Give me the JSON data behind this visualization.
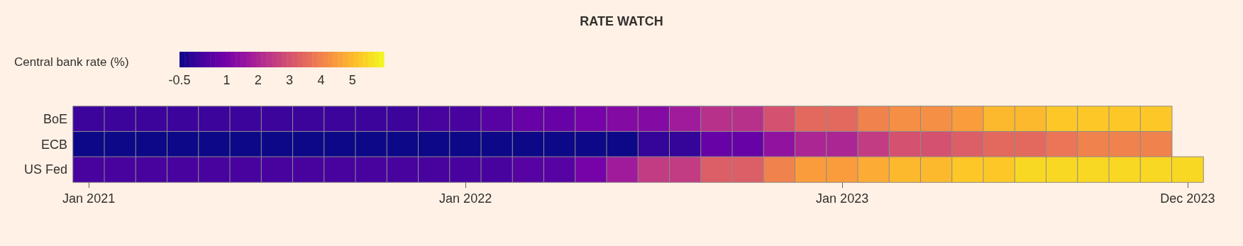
{
  "chart_data": {
    "type": "heatmap",
    "title": "RATE WATCH",
    "clabel": "Central bank rate (%)",
    "categories": [
      "Jan 2021",
      null,
      null,
      null,
      null,
      null,
      null,
      null,
      null,
      null,
      null,
      null,
      "Jan 2022",
      null,
      null,
      null,
      null,
      null,
      null,
      null,
      null,
      null,
      null,
      null,
      "Jan 2023",
      null,
      null,
      null,
      null,
      null,
      null,
      null,
      null,
      null,
      null,
      "Dec 2023"
    ],
    "y_categories": [
      "BoE",
      "ECB",
      "US Fed"
    ],
    "cells": [
      [
        0.1,
        0.1,
        0.1,
        0.1,
        0.1,
        0.1,
        0.1,
        0.1,
        0.1,
        0.1,
        0.1,
        0.25,
        0.25,
        0.5,
        0.75,
        0.75,
        1.0,
        1.25,
        1.25,
        1.75,
        2.25,
        2.25,
        3.0,
        3.5,
        3.5,
        4.0,
        4.25,
        4.25,
        4.5,
        5.0,
        5.0,
        5.25,
        5.25,
        5.25,
        5.25,
        null
      ],
      [
        -0.5,
        -0.5,
        -0.5,
        -0.5,
        -0.5,
        -0.5,
        -0.5,
        -0.5,
        -0.5,
        -0.5,
        -0.5,
        -0.5,
        -0.5,
        -0.5,
        -0.5,
        -0.5,
        -0.5,
        -0.5,
        0,
        0,
        0.75,
        0.75,
        1.5,
        2.0,
        2.0,
        2.5,
        3.0,
        3.0,
        3.25,
        3.5,
        3.5,
        3.75,
        4.0,
        4.0,
        4.0,
        null
      ],
      [
        0.25,
        0.25,
        0.25,
        0.25,
        0.25,
        0.25,
        0.25,
        0.25,
        0.25,
        0.25,
        0.25,
        0.25,
        0.25,
        0.25,
        0.5,
        0.5,
        1.0,
        1.75,
        2.5,
        2.5,
        3.25,
        3.25,
        4.0,
        4.5,
        4.5,
        4.75,
        5.0,
        5.0,
        5.25,
        5.25,
        5.5,
        5.5,
        5.5,
        5.5,
        5.5,
        5.5
      ]
    ],
    "clim": [
      -0.5,
      6
    ],
    "cticks": [
      -0.5,
      1,
      2,
      3,
      4,
      5
    ]
  }
}
